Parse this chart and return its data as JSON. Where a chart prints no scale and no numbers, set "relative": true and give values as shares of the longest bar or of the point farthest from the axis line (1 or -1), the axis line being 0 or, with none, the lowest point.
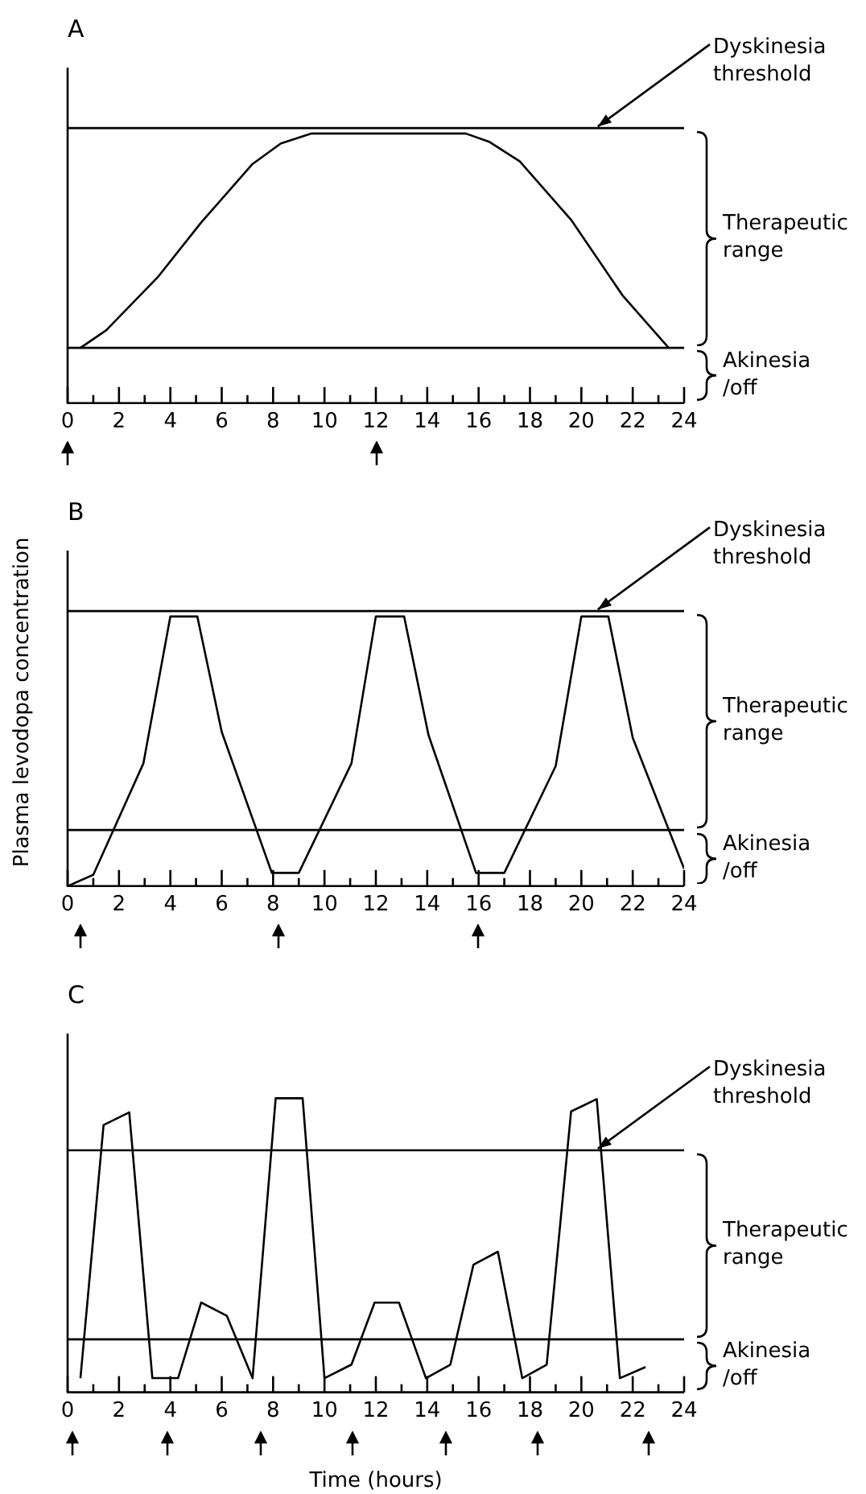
{
  "chart_data": [
    {
      "type": "line",
      "title": "A",
      "relative": true,
      "xlim": [
        0,
        24
      ],
      "xticks": [
        0,
        {
          "value": 1,
          "label": null
        },
        2,
        {
          "value": 3,
          "label": null
        },
        4,
        {
          "value": 5,
          "label": null
        },
        6,
        {
          "value": 7,
          "label": null
        },
        8,
        {
          "value": 9,
          "label": null
        },
        10,
        {
          "value": 11,
          "label": null
        },
        12,
        {
          "value": 13,
          "label": null
        },
        14,
        {
          "value": 15,
          "label": null
        },
        16,
        {
          "value": 17,
          "label": null
        },
        18,
        {
          "value": 19,
          "label": null
        },
        20,
        {
          "value": 21,
          "label": null
        },
        22,
        {
          "value": 23,
          "label": null
        },
        24
      ],
      "series": [
        {
          "color": "#000000",
          "x": [
            0.5,
            1.5,
            3.5,
            5.2,
            7.2,
            8.3,
            9.5,
            15.5,
            16.4,
            17.6,
            19.6,
            21.6,
            23.4
          ],
          "values": [
            0.205,
            0.27,
            0.466,
            0.67,
            0.887,
            0.963,
            1,
            1,
            0.97,
            0.897,
            0.68,
            0.4,
            0.205
          ]
        }
      ],
      "ref_lines": [
        {
          "axis": "y",
          "value": 1.02,
          "label": "Dyskinesia threshold"
        },
        {
          "axis": "y",
          "value": 0.205
        }
      ],
      "annotations": [
        "Therapeutic range",
        "Akinesia /off"
      ]
    },
    {
      "type": "line",
      "title": "B",
      "ylabel": "Plasma levodopa concentration",
      "relative": true,
      "xlim": [
        0,
        24
      ],
      "xticks": [
        0,
        {
          "value": 1,
          "label": null
        },
        2,
        {
          "value": 3,
          "label": null
        },
        4,
        {
          "value": 5,
          "label": null
        },
        6,
        {
          "value": 7,
          "label": null
        },
        8,
        {
          "value": 9,
          "label": null
        },
        10,
        {
          "value": 11,
          "label": null
        },
        12,
        {
          "value": 13,
          "label": null
        },
        14,
        {
          "value": 15,
          "label": null
        },
        16,
        {
          "value": 17,
          "label": null
        },
        18,
        {
          "value": 19,
          "label": null
        },
        20,
        {
          "value": 21,
          "label": null
        },
        22,
        {
          "value": 23,
          "label": null
        },
        24
      ],
      "series": [
        {
          "color": "#000000",
          "x": [
            0,
            1,
            2.95,
            4,
            5.05,
            6,
            7.95,
            9,
            11.05,
            12,
            13.1,
            14.05,
            15.9,
            17,
            19,
            20,
            21.05,
            22,
            24
          ],
          "values": [
            0,
            0.042,
            0.455,
            1,
            1,
            0.572,
            0.049,
            0.049,
            0.455,
            1,
            1,
            0.56,
            0.049,
            0.049,
            0.445,
            1,
            1,
            0.55,
            0.064
          ]
        }
      ],
      "ref_lines": [
        {
          "axis": "y",
          "value": 1.02,
          "label": "Dyskinesia threshold"
        },
        {
          "axis": "y",
          "value": 0.208
        }
      ],
      "annotations": [
        "Therapeutic range",
        "Akinesia /off"
      ]
    },
    {
      "type": "line",
      "title": "C",
      "xlabel": "Time (hours)",
      "relative": true,
      "xlim": [
        0,
        24
      ],
      "xticks": [
        0,
        {
          "value": 1,
          "label": null
        },
        2,
        {
          "value": 3,
          "label": null
        },
        4,
        {
          "value": 5,
          "label": null
        },
        6,
        {
          "value": 7,
          "label": null
        },
        8,
        {
          "value": 9,
          "label": null
        },
        10,
        {
          "value": 11,
          "label": null
        },
        12,
        {
          "value": 13,
          "label": null
        },
        14,
        {
          "value": 15,
          "label": null
        },
        16,
        {
          "value": 17,
          "label": null
        },
        18,
        {
          "value": 19,
          "label": null
        },
        20,
        {
          "value": 21,
          "label": null
        },
        22,
        {
          "value": 23,
          "label": null
        },
        24
      ],
      "series": [
        {
          "color": "#000000",
          "x": [
            0.5,
            1.4,
            2.4,
            3.3,
            4.3,
            5.2,
            6.2,
            7.2,
            8.1,
            9.15,
            10,
            11.05,
            11.95,
            12.9,
            13.95,
            14.9,
            15.8,
            16.75,
            17.7,
            18.65,
            19.6,
            20.6,
            21.5,
            22.5
          ],
          "values": [
            0.048,
            0.909,
            0.952,
            0.048,
            0.048,
            0.305,
            0.26,
            0.048,
            1,
            1,
            0.048,
            0.094,
            0.305,
            0.305,
            0.048,
            0.094,
            0.434,
            0.478,
            0.048,
            0.094,
            0.955,
            0.997,
            0.048,
            0.086
          ]
        }
      ],
      "ref_lines": [
        {
          "axis": "y",
          "value": 0.823,
          "label": "Dyskinesia threshold"
        },
        {
          "axis": "y",
          "value": 0.18
        }
      ],
      "annotations": [
        "Therapeutic range",
        "Akinesia /off"
      ]
    }
  ]
}
